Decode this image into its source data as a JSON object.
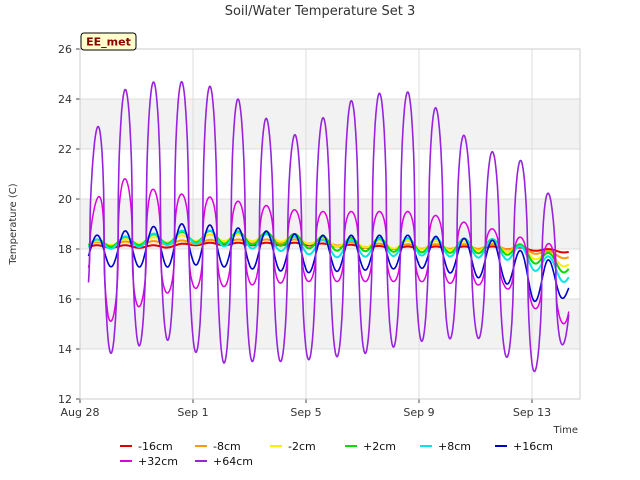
{
  "chart_data": {
    "type": "line",
    "title": "Soil/Water Temperature Set 3",
    "xlabel": "Time",
    "ylabel": "Temperature (C)",
    "badge": "EE_met",
    "xlim": [
      0,
      17.7
    ],
    "ylim": [
      12,
      26
    ],
    "x_ticks": [
      {
        "label": "Aug 28",
        "value": 0
      },
      {
        "label": "Sep 1",
        "value": 4
      },
      {
        "label": "Sep 5",
        "value": 8
      },
      {
        "label": "Sep 9",
        "value": 12
      },
      {
        "label": "Sep 13",
        "value": 16
      }
    ],
    "y_ticks": [
      12,
      14,
      16,
      18,
      20,
      22,
      24,
      26
    ],
    "grid": true,
    "bands": [
      [
        14,
        16
      ],
      [
        18,
        20
      ],
      [
        22,
        24
      ]
    ],
    "x_range": [
      0.3,
      17.3
    ],
    "series": [
      {
        "name": "-16cm",
        "color": "#e00000",
        "width": 2.0,
        "base": [
          [
            0.3,
            18.1
          ],
          [
            3,
            18.1
          ],
          [
            4,
            18.2
          ],
          [
            8,
            18.2
          ],
          [
            11,
            18.05
          ],
          [
            15,
            18.05
          ],
          [
            17.3,
            17.9
          ]
        ],
        "amps": [
          [
            0.3,
            0.05
          ],
          [
            17.3,
            0.05
          ]
        ],
        "sharp": 1.0
      },
      {
        "name": "-8cm",
        "color": "#ff9900",
        "width": 2.0,
        "base": [
          [
            0.3,
            18.2
          ],
          [
            3,
            18.25
          ],
          [
            5,
            18.3
          ],
          [
            8,
            18.3
          ],
          [
            11,
            18.1
          ],
          [
            15,
            18.1
          ],
          [
            17.3,
            17.7
          ]
        ],
        "amps": [
          [
            0.3,
            0.07
          ],
          [
            17.3,
            0.1
          ]
        ],
        "sharp": 1.0
      },
      {
        "name": "-2cm",
        "color": "#ffee00",
        "width": 2.0,
        "base": [
          [
            0.3,
            18.2
          ],
          [
            4,
            18.45
          ],
          [
            7,
            18.45
          ],
          [
            9,
            18.25
          ],
          [
            12,
            18.15
          ],
          [
            15,
            18.1
          ],
          [
            17.3,
            17.45
          ]
        ],
        "amps": [
          [
            0.3,
            0.1
          ],
          [
            17.3,
            0.2
          ]
        ],
        "sharp": 1.0
      },
      {
        "name": "+2cm",
        "color": "#00dd00",
        "width": 2.0,
        "base": [
          [
            0.3,
            18.2
          ],
          [
            4,
            18.5
          ],
          [
            7,
            18.4
          ],
          [
            9,
            18.2
          ],
          [
            12,
            18.15
          ],
          [
            15,
            18.1
          ],
          [
            17.3,
            17.3
          ]
        ],
        "amps": [
          [
            0.3,
            0.15
          ],
          [
            5,
            0.25
          ],
          [
            17.3,
            0.3
          ]
        ],
        "sharp": 1.0
      },
      {
        "name": "+8cm",
        "color": "#00e5e5",
        "width": 2.0,
        "base": [
          [
            0.3,
            18.15
          ],
          [
            4,
            18.5
          ],
          [
            7,
            18.25
          ],
          [
            9,
            18.0
          ],
          [
            12,
            18.1
          ],
          [
            15,
            18.0
          ],
          [
            17.3,
            17.0
          ]
        ],
        "amps": [
          [
            0.3,
            0.2
          ],
          [
            5,
            0.3
          ],
          [
            17.3,
            0.4
          ]
        ],
        "sharp": 1.0
      },
      {
        "name": "+16cm",
        "color": "#0000cc",
        "width": 1.6,
        "base": [
          [
            0.3,
            17.9
          ],
          [
            4,
            18.2
          ],
          [
            8,
            17.8
          ],
          [
            12,
            17.9
          ],
          [
            15,
            17.5
          ],
          [
            16,
            16.8
          ],
          [
            17.3,
            16.6
          ]
        ],
        "amps": [
          [
            0.3,
            0.6
          ],
          [
            3,
            0.85
          ],
          [
            8,
            0.75
          ],
          [
            12,
            0.65
          ],
          [
            16.5,
            0.9
          ],
          [
            17.3,
            0.5
          ]
        ],
        "sharp": 1.0
      },
      {
        "name": "+32cm",
        "color": "#dd00dd",
        "width": 1.5,
        "base": [
          [
            0.3,
            18.0
          ],
          [
            4,
            18.3
          ],
          [
            8,
            18.1
          ],
          [
            12,
            18.1
          ],
          [
            15,
            17.6
          ],
          [
            16,
            17.0
          ],
          [
            17.3,
            16.5
          ]
        ],
        "amps": [
          [
            0.3,
            1.2
          ],
          [
            1.0,
            3.0
          ],
          [
            3,
            2.0
          ],
          [
            8,
            1.4
          ],
          [
            12,
            1.4
          ],
          [
            15,
            1.1
          ],
          [
            17.3,
            1.6
          ]
        ],
        "sharp": 2.5
      },
      {
        "name": "+64cm",
        "color": "#9922dd",
        "width": 1.6,
        "base": [
          [
            0.3,
            18.5
          ],
          [
            1.0,
            19.0
          ],
          [
            3,
            19.6
          ],
          [
            6,
            18.6
          ],
          [
            7.5,
            18.0
          ],
          [
            10,
            19.0
          ],
          [
            12,
            19.3
          ],
          [
            14,
            18.3
          ],
          [
            16,
            17.2
          ],
          [
            17.3,
            16.6
          ]
        ],
        "amps": [
          [
            0.3,
            3.3
          ],
          [
            1,
            5.2
          ],
          [
            3,
            5.2
          ],
          [
            5,
            5.5
          ],
          [
            7.5,
            4.5
          ],
          [
            10,
            5.2
          ],
          [
            12,
            5.0
          ],
          [
            14,
            3.8
          ],
          [
            16,
            4.2
          ],
          [
            17.3,
            2.2
          ]
        ],
        "sharp": 2.0
      }
    ]
  }
}
